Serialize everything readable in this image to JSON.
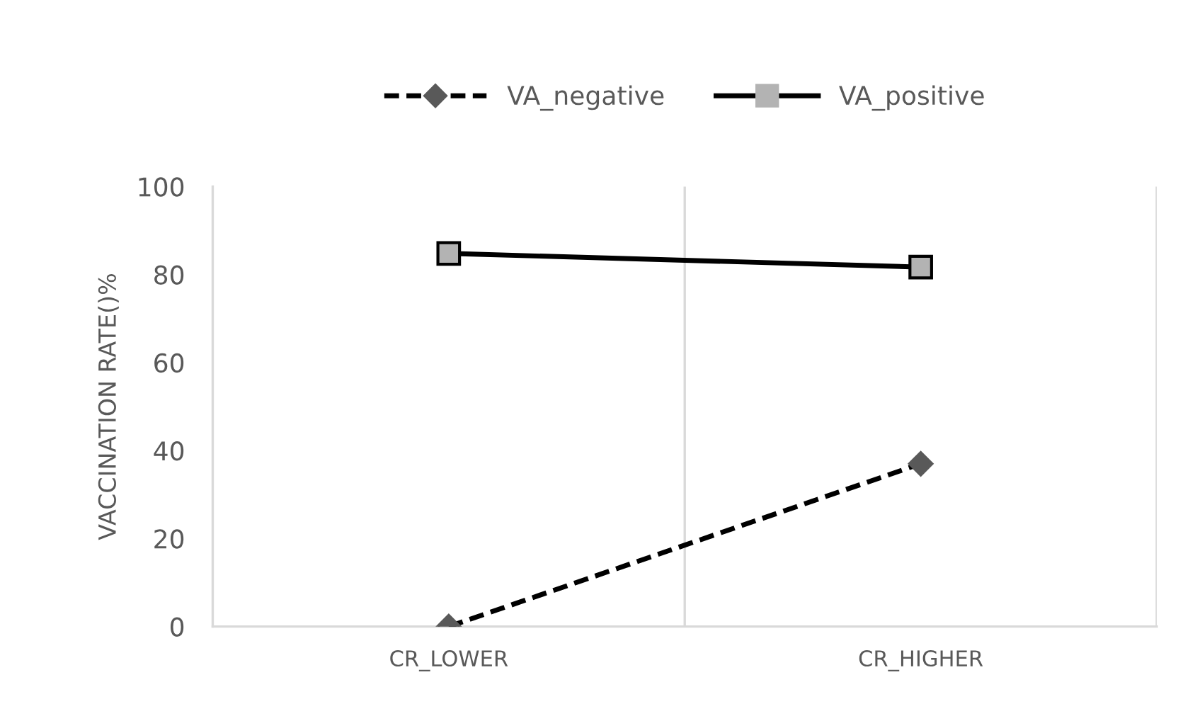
{
  "chart_data": {
    "type": "line",
    "ylabel": "VACCINATION RATE()%",
    "categories": [
      "CR_LOWER",
      "CR_HIGHER"
    ],
    "series": [
      {
        "name": "VA_negative",
        "color": "#000000",
        "colors": [
          "#595959",
          "#595959"
        ],
        "marker": "diamond",
        "line_style": "dashed",
        "values": [
          0,
          37
        ]
      },
      {
        "name": "VA_positive",
        "color": "#000000",
        "colors": [
          "#b3b3b3",
          "#b3b3b3"
        ],
        "marker": "square",
        "line_style": "solid",
        "values": [
          84.8,
          81.7
        ]
      }
    ],
    "ylim": [
      0,
      100
    ],
    "yticks": [
      0,
      20,
      40,
      60,
      80,
      100
    ],
    "grid": "x",
    "legend": "top"
  }
}
